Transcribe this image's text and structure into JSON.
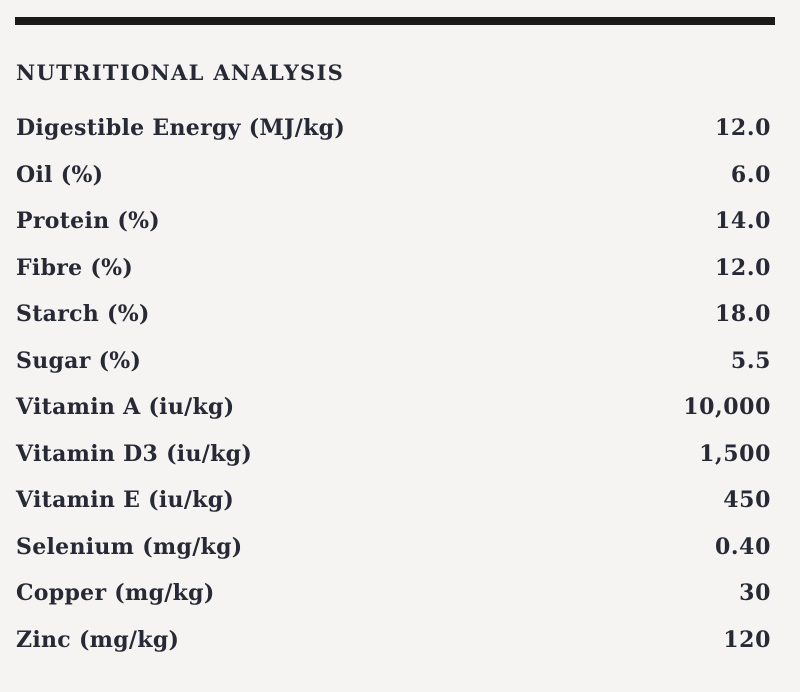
{
  "section": {
    "title": "NUTRITIONAL ANALYSIS"
  },
  "table": {
    "rows": [
      {
        "label": "Digestible Energy (MJ/kg)",
        "value": "12.0"
      },
      {
        "label": "Oil (%)",
        "value": "6.0"
      },
      {
        "label": "Protein (%)",
        "value": "14.0"
      },
      {
        "label": "Fibre (%)",
        "value": "12.0"
      },
      {
        "label": "Starch (%)",
        "value": "18.0"
      },
      {
        "label": "Sugar (%)",
        "value": "5.5"
      },
      {
        "label": "Vitamin A (iu/kg)",
        "value": "10,000"
      },
      {
        "label": "Vitamin D3 (iu/kg)",
        "value": "1,500"
      },
      {
        "label": "Vitamin E (iu/kg)",
        "value": "450"
      },
      {
        "label": "Selenium (mg/kg)",
        "value": "0.40"
      },
      {
        "label": "Copper (mg/kg)",
        "value": "30"
      },
      {
        "label": "Zinc (mg/kg)",
        "value": "120"
      }
    ]
  },
  "colors": {
    "background": "#f5f4f2",
    "text": "#272935",
    "rule": "#1b1b1a"
  }
}
